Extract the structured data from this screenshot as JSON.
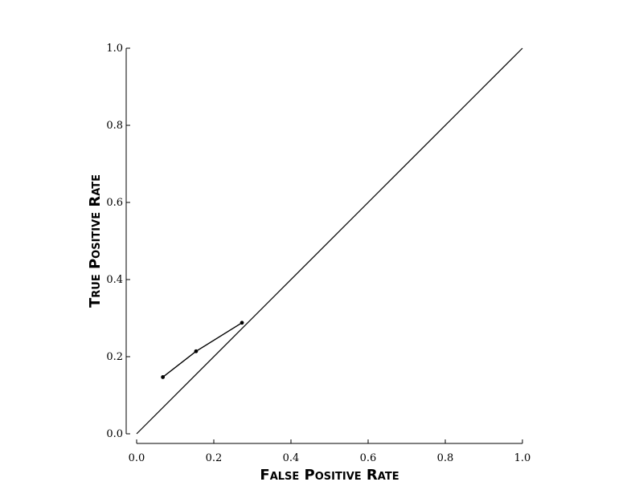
{
  "chart_data": {
    "type": "line",
    "title": "",
    "xlabel": "False Positive Rate",
    "ylabel": "True Positive Rate",
    "xlim": [
      0.0,
      1.0
    ],
    "ylim": [
      0.0,
      1.0
    ],
    "xticks": [
      "0.0",
      "0.2",
      "0.4",
      "0.6",
      "0.8",
      "1.0"
    ],
    "yticks": [
      "0.0",
      "0.2",
      "0.4",
      "0.6",
      "0.8",
      "1.0"
    ],
    "grid": false,
    "legend": "none",
    "series": [
      {
        "x": [
          0.068,
          0.154,
          0.273
        ],
        "y": [
          0.147,
          0.214,
          0.288
        ],
        "markers": true
      },
      {
        "x": [
          0.0,
          1.0
        ],
        "y": [
          0.0,
          1.0
        ],
        "markers": false
      }
    ],
    "colors": {
      "line": "#000000"
    }
  }
}
